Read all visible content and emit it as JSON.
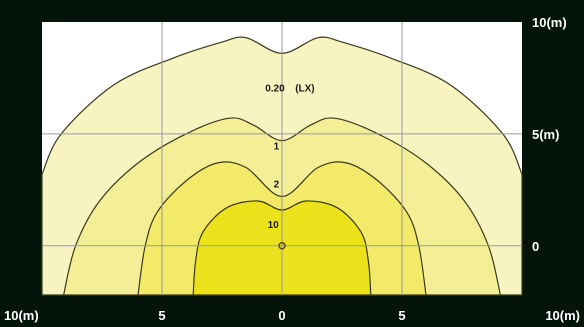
{
  "chart_data": {
    "type": "contour",
    "title": "",
    "xlabel": "",
    "ylabel": "",
    "unit": "(LX)",
    "xlim": [
      -10,
      10
    ],
    "ylim": [
      -2.2,
      10
    ],
    "x_ticks": [
      {
        "value": -10,
        "label": "10(m)"
      },
      {
        "value": -5,
        "label": "5"
      },
      {
        "value": 0,
        "label": "0"
      },
      {
        "value": 5,
        "label": "5"
      },
      {
        "value": 10,
        "label": "10(m)"
      }
    ],
    "y_ticks": [
      {
        "value": 10,
        "label": "10(m)"
      },
      {
        "value": 5,
        "label": "5(m)"
      },
      {
        "value": 0,
        "label": "0"
      }
    ],
    "grid_x": [
      -5,
      0,
      5
    ],
    "grid_y": [
      0,
      5
    ],
    "source_point": [
      0,
      0
    ],
    "colors": {
      "background": "#04140a",
      "plot_area": "#ffffff",
      "grid": "#9a9a9a",
      "outline": "#3a3a1a",
      "axis_text": "#ffffff",
      "level_colors": [
        "#f7f4c2",
        "#f4ef96",
        "#f2ea68",
        "#ece21c"
      ]
    },
    "contours": [
      {
        "level": "0.20",
        "label": "0.20",
        "label_pos": [
          -0.7,
          6.9
        ],
        "points": [
          [
            -10,
            3.2
          ],
          [
            -9.2,
            5
          ],
          [
            -7,
            7.2
          ],
          [
            -4.5,
            8.4
          ],
          [
            -2.5,
            9.1
          ],
          [
            -1.5,
            9.3
          ],
          [
            0,
            8.6
          ],
          [
            1.5,
            9.3
          ],
          [
            2.5,
            9.1
          ],
          [
            4.5,
            8.4
          ],
          [
            7,
            7.2
          ],
          [
            9.2,
            5
          ],
          [
            10,
            3.2
          ]
        ]
      },
      {
        "level": "1",
        "label": "1",
        "label_pos": [
          -0.35,
          4.3
        ],
        "points": [
          [
            -9.1,
            -2.2
          ],
          [
            -8.6,
            0
          ],
          [
            -7.6,
            2
          ],
          [
            -6,
            3.7
          ],
          [
            -4,
            5
          ],
          [
            -2.2,
            5.7
          ],
          [
            -1.2,
            5.4
          ],
          [
            0,
            4.7
          ],
          [
            1.2,
            5.4
          ],
          [
            2.2,
            5.7
          ],
          [
            4,
            5
          ],
          [
            6,
            3.7
          ],
          [
            7.6,
            2
          ],
          [
            8.6,
            0
          ],
          [
            9.1,
            -2.2
          ]
        ]
      },
      {
        "level": "2",
        "label": "2",
        "label_pos": [
          -0.35,
          2.6
        ],
        "points": [
          [
            -6,
            -2.2
          ],
          [
            -5.7,
            0
          ],
          [
            -5.2,
            1.5
          ],
          [
            -4,
            2.9
          ],
          [
            -2.7,
            3.7
          ],
          [
            -1.5,
            3.5
          ],
          [
            0,
            2.2
          ],
          [
            1.5,
            3.5
          ],
          [
            2.7,
            3.7
          ],
          [
            4,
            2.9
          ],
          [
            5.2,
            1.5
          ],
          [
            5.7,
            0
          ],
          [
            6,
            -2.2
          ]
        ]
      },
      {
        "level": "10",
        "label": "10",
        "label_pos": [
          -0.6,
          0.8
        ],
        "points": [
          [
            -3.7,
            -2.2
          ],
          [
            -3.6,
            -0.7
          ],
          [
            -3.3,
            0.6
          ],
          [
            -2.3,
            1.7
          ],
          [
            -1,
            2
          ],
          [
            0,
            1.6
          ],
          [
            1,
            2
          ],
          [
            2.3,
            1.7
          ],
          [
            3.3,
            0.6
          ],
          [
            3.6,
            -0.7
          ],
          [
            3.7,
            -2.2
          ]
        ]
      }
    ]
  }
}
